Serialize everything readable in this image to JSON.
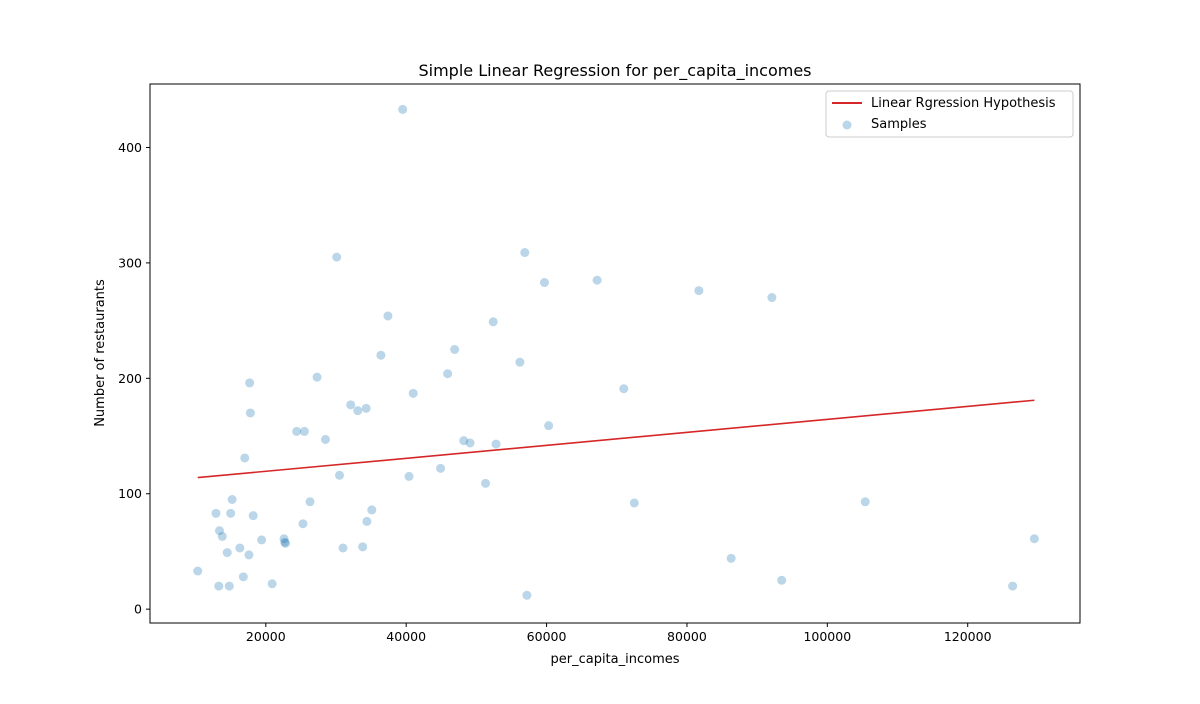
{
  "chart_data": {
    "type": "scatter",
    "title": "Simple Linear Regression for per_capita_incomes",
    "xlabel": "per_capita_incomes",
    "ylabel": "Number of restaurants",
    "xlim": [
      3500,
      136000
    ],
    "ylim": [
      -12,
      455
    ],
    "xticks": [
      20000,
      40000,
      60000,
      80000,
      100000,
      120000
    ],
    "yticks": [
      0,
      100,
      200,
      300,
      400
    ],
    "grid": false,
    "legend": {
      "location": "top-right",
      "entries": [
        {
          "label": "Linear Rgression Hypothesis",
          "kind": "line",
          "color": "#d62728"
        },
        {
          "label": "Samples",
          "kind": "marker",
          "color": "#1f77b4"
        }
      ]
    },
    "series": [
      {
        "name": "Samples",
        "kind": "scatter",
        "color": "#1f77b4",
        "points": [
          [
            10300,
            33
          ],
          [
            12900,
            83
          ],
          [
            13300,
            20
          ],
          [
            13400,
            68
          ],
          [
            13800,
            63
          ],
          [
            14500,
            49
          ],
          [
            14800,
            20
          ],
          [
            15000,
            83
          ],
          [
            15200,
            95
          ],
          [
            16300,
            53
          ],
          [
            16800,
            28
          ],
          [
            17000,
            131
          ],
          [
            17600,
            47
          ],
          [
            17700,
            196
          ],
          [
            17800,
            170
          ],
          [
            18200,
            81
          ],
          [
            19400,
            60
          ],
          [
            20900,
            22
          ],
          [
            22600,
            61
          ],
          [
            22700,
            58
          ],
          [
            22800,
            57
          ],
          [
            24400,
            154
          ],
          [
            25300,
            74
          ],
          [
            25500,
            154
          ],
          [
            26300,
            93
          ],
          [
            27300,
            201
          ],
          [
            28500,
            147
          ],
          [
            30100,
            305
          ],
          [
            30500,
            116
          ],
          [
            31000,
            53
          ],
          [
            32100,
            177
          ],
          [
            33100,
            172
          ],
          [
            33800,
            54
          ],
          [
            34300,
            174
          ],
          [
            34400,
            76
          ],
          [
            35100,
            86
          ],
          [
            36400,
            220
          ],
          [
            37400,
            254
          ],
          [
            39500,
            433
          ],
          [
            40400,
            115
          ],
          [
            41000,
            187
          ],
          [
            44900,
            122
          ],
          [
            45900,
            204
          ],
          [
            46900,
            225
          ],
          [
            48200,
            146
          ],
          [
            49100,
            144
          ],
          [
            51300,
            109
          ],
          [
            52400,
            249
          ],
          [
            52800,
            143
          ],
          [
            56200,
            214
          ],
          [
            56900,
            309
          ],
          [
            57200,
            12
          ],
          [
            59700,
            283
          ],
          [
            60300,
            159
          ],
          [
            67200,
            285
          ],
          [
            71000,
            191
          ],
          [
            72500,
            92
          ],
          [
            81700,
            276
          ],
          [
            86300,
            44
          ],
          [
            92100,
            270
          ],
          [
            93500,
            25
          ],
          [
            105400,
            93
          ],
          [
            126400,
            20
          ],
          [
            129500,
            61
          ]
        ]
      },
      {
        "name": "Linear Rgression Hypothesis",
        "kind": "line",
        "color": "#d62728",
        "points": [
          [
            10300,
            114
          ],
          [
            129500,
            181
          ]
        ]
      }
    ]
  }
}
